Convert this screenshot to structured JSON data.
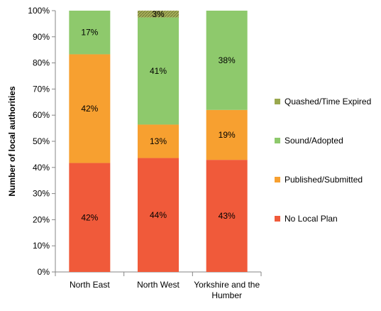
{
  "chart_data": {
    "type": "bar",
    "stacked": true,
    "percent": true,
    "categories": [
      "North East",
      "North West",
      "Yorkshire and the Humber"
    ],
    "category_label_lines": [
      [
        "North East"
      ],
      [
        "North West"
      ],
      [
        "Yorkshire and the",
        "Humber"
      ]
    ],
    "series": [
      {
        "name": "No Local Plan",
        "values": [
          41.7,
          43.6,
          42.9
        ],
        "labels": [
          "42%",
          "44%",
          "43%"
        ],
        "color": "#f05a3a"
      },
      {
        "name": "Published/Submitted",
        "values": [
          41.6,
          12.8,
          19.1
        ],
        "labels": [
          "42%",
          "13%",
          "19%"
        ],
        "color": "#f7a030"
      },
      {
        "name": "Sound/Adopted",
        "values": [
          16.7,
          41.0,
          38.0
        ],
        "labels": [
          "17%",
          "41%",
          "38%"
        ],
        "color": "#8ec96c"
      },
      {
        "name": "Quashed/Time Expired",
        "values": [
          0,
          2.6,
          0
        ],
        "labels": [
          "",
          "3%",
          ""
        ],
        "color": "#9aa84e"
      }
    ],
    "ylabel": "Number of local authorities",
    "xlabel": "",
    "ylim": [
      0,
      100
    ],
    "yticks": [
      0,
      10,
      20,
      30,
      40,
      50,
      60,
      70,
      80,
      90,
      100
    ],
    "ytick_labels": [
      "0%",
      "10%",
      "20%",
      "30%",
      "40%",
      "50%",
      "60%",
      "70%",
      "80%",
      "90%",
      "100%"
    ],
    "grid": false,
    "legend_position": "right"
  }
}
